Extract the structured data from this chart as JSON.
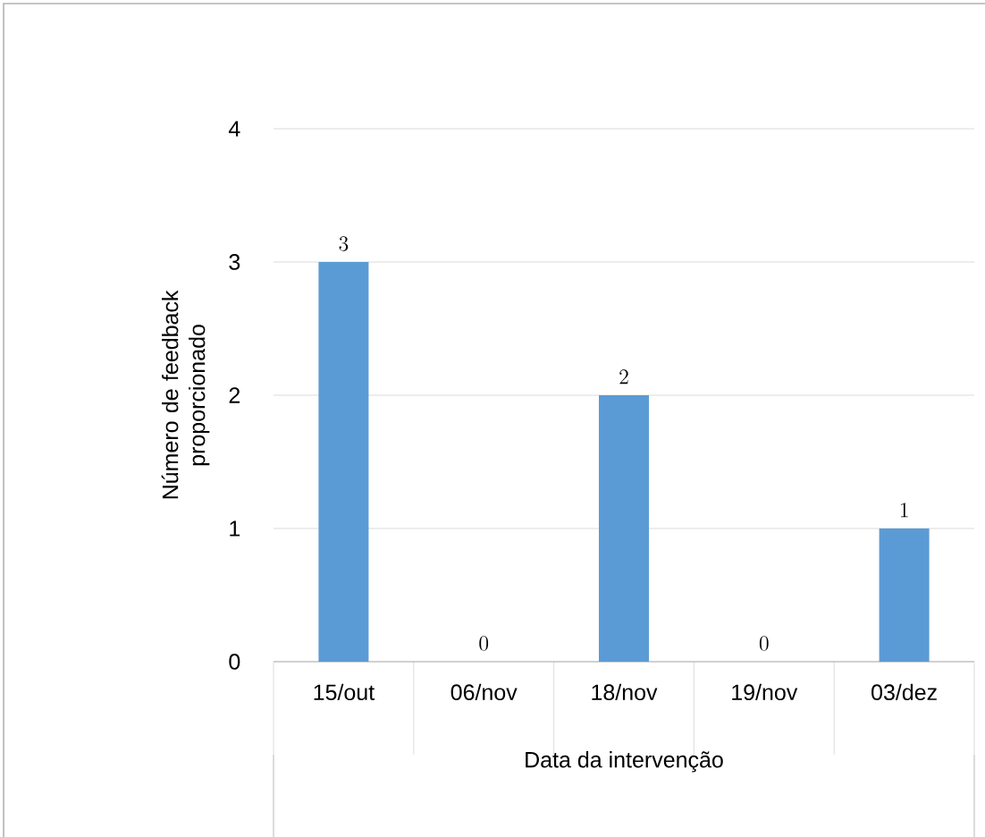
{
  "chart_data": {
    "type": "bar",
    "xlabel": "Data da intervenção",
    "ylabel": "Número de feedback proporcionado",
    "categories": [
      "15/out",
      "06/nov",
      "18/nov",
      "19/nov",
      "03/dez"
    ],
    "values": [
      3,
      0,
      2,
      0,
      1
    ],
    "color": "#5b9bd5",
    "ylim": [
      0,
      4
    ],
    "yticks": [
      0,
      1,
      2,
      3,
      4
    ],
    "grid": "y",
    "data_labels": true
  }
}
